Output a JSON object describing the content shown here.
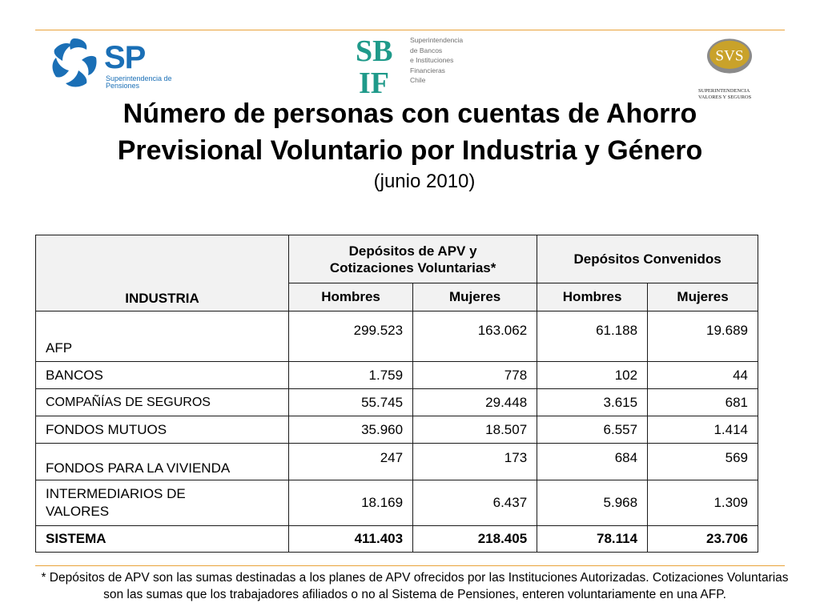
{
  "logos": {
    "sp": {
      "wordmark": "SP",
      "subtitle": "Superintendencia de Pensiones"
    },
    "sbif": {
      "letters": "SBIF",
      "subtitle_lines": [
        "Superintendencia",
        "de Bancos",
        "e Instituciones",
        "Financieras",
        "Chile"
      ]
    },
    "svs": {
      "wordmark": "SVS",
      "subtitle_lines": [
        "SUPERINTENDENCIA",
        "VALORES Y SEGUROS"
      ]
    }
  },
  "title": {
    "line1": "Número de personas con cuentas de Ahorro",
    "line2": "Previsional Voluntario por Industria y Género",
    "subtitle": "(junio 2010)"
  },
  "table": {
    "header": {
      "industria": "INDUSTRIA",
      "group1_line1": "Depósitos de APV y",
      "group1_line2": "Cotizaciones Voluntarias*",
      "group2": "Depósitos Convenidos",
      "hombres": "Hombres",
      "mujeres": "Mujeres"
    },
    "rows": [
      {
        "name": "AFP",
        "apv_h": "299.523",
        "apv_m": "163.062",
        "conv_h": "61.188",
        "conv_m": "19.689"
      },
      {
        "name": "BANCOS",
        "apv_h": "1.759",
        "apv_m": "778",
        "conv_h": "102",
        "conv_m": "44"
      },
      {
        "name": "COMPAÑÍAS DE SEGUROS",
        "apv_h": "55.745",
        "apv_m": "29.448",
        "conv_h": "3.615",
        "conv_m": "681"
      },
      {
        "name": "FONDOS MUTUOS",
        "apv_h": "35.960",
        "apv_m": "18.507",
        "conv_h": "6.557",
        "conv_m": "1.414"
      },
      {
        "name": "FONDOS PARA LA VIVIENDA",
        "apv_h": "247",
        "apv_m": "173",
        "conv_h": "684",
        "conv_m": "569"
      },
      {
        "name_line1": "INTERMEDIARIOS DE",
        "name_line2": "VALORES",
        "apv_h": "18.169",
        "apv_m": "6.437",
        "conv_h": "5.968",
        "conv_m": "1.309"
      },
      {
        "name": "SISTEMA",
        "apv_h": "411.403",
        "apv_m": "218.405",
        "conv_h": "78.114",
        "conv_m": "23.706"
      }
    ]
  },
  "footnote": "* Depósitos de APV son las sumas destinadas a los planes de APV ofrecidos por las Instituciones Autorizadas. Cotizaciones Voluntarias son las sumas que los trabajadores afiliados o no al Sistema de Pensiones, enteren voluntariamente en una AFP.",
  "colors": {
    "accent_rule": "#e9a33a",
    "sp_blue": "#1a6fb6",
    "sbif_teal": "#1f9a8a",
    "svs_gold": "#c9a22a"
  }
}
